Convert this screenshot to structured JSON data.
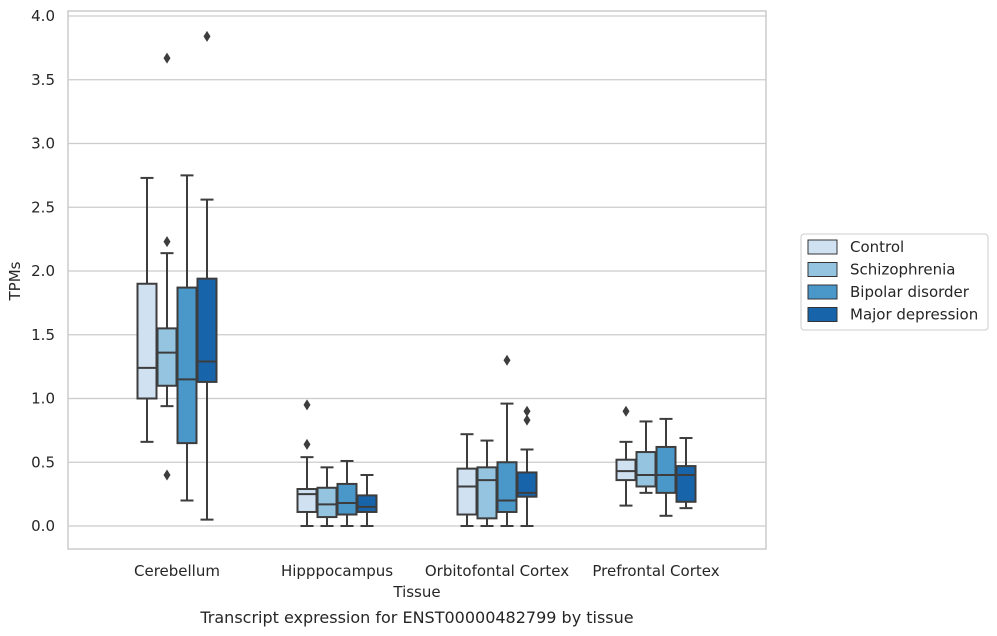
{
  "chart_data": {
    "type": "box",
    "xlabel": "Tissue",
    "ylabel": "TPMs",
    "caption": "Transcript expression for ENST00000482799 by tissue",
    "ylim": [
      -0.18,
      4.05
    ],
    "yticks": [
      "0.0",
      "0.5",
      "1.0",
      "1.5",
      "2.0",
      "2.5",
      "3.0",
      "3.5",
      "4.0"
    ],
    "grid": "horizontal",
    "legend_position": "right",
    "categories": [
      "Cerebellum",
      "Hipppocampus",
      "Orbitofontal Cortex",
      "Prefrontal Cortex"
    ],
    "series": [
      {
        "name": "Control",
        "color": "#d0e1f2",
        "boxes": [
          {
            "whisker_low": 0.66,
            "q1": 1.0,
            "median": 1.24,
            "q3": 1.9,
            "whisker_high": 2.73,
            "outliers": []
          },
          {
            "whisker_low": 0.0,
            "q1": 0.11,
            "median": 0.25,
            "q3": 0.29,
            "whisker_high": 0.54,
            "outliers": [
              0.64,
              0.95
            ]
          },
          {
            "whisker_low": 0.0,
            "q1": 0.09,
            "median": 0.31,
            "q3": 0.45,
            "whisker_high": 0.72,
            "outliers": []
          },
          {
            "whisker_low": 0.16,
            "q1": 0.36,
            "median": 0.43,
            "q3": 0.52,
            "whisker_high": 0.66,
            "outliers": [
              0.9
            ]
          }
        ]
      },
      {
        "name": "Schizophrenia",
        "color": "#94c4df",
        "boxes": [
          {
            "whisker_low": 0.94,
            "q1": 1.1,
            "median": 1.36,
            "q3": 1.55,
            "whisker_high": 2.14,
            "outliers": [
              0.4,
              2.23,
              3.67
            ]
          },
          {
            "whisker_low": 0.0,
            "q1": 0.07,
            "median": 0.17,
            "q3": 0.3,
            "whisker_high": 0.46,
            "outliers": []
          },
          {
            "whisker_low": 0.0,
            "q1": 0.06,
            "median": 0.36,
            "q3": 0.46,
            "whisker_high": 0.67,
            "outliers": []
          },
          {
            "whisker_low": 0.26,
            "q1": 0.31,
            "median": 0.4,
            "q3": 0.58,
            "whisker_high": 0.82,
            "outliers": []
          }
        ]
      },
      {
        "name": "Bipolar disorder",
        "color": "#4a98c9",
        "boxes": [
          {
            "whisker_low": 0.2,
            "q1": 0.65,
            "median": 1.15,
            "q3": 1.87,
            "whisker_high": 2.75,
            "outliers": []
          },
          {
            "whisker_low": 0.0,
            "q1": 0.09,
            "median": 0.18,
            "q3": 0.33,
            "whisker_high": 0.51,
            "outliers": []
          },
          {
            "whisker_low": 0.0,
            "q1": 0.11,
            "median": 0.2,
            "q3": 0.5,
            "whisker_high": 0.96,
            "outliers": [
              1.3
            ]
          },
          {
            "whisker_low": 0.08,
            "q1": 0.26,
            "median": 0.4,
            "q3": 0.62,
            "whisker_high": 0.84,
            "outliers": []
          }
        ]
      },
      {
        "name": "Major depression",
        "color": "#1764ab",
        "boxes": [
          {
            "whisker_low": 0.05,
            "q1": 1.13,
            "median": 1.29,
            "q3": 1.94,
            "whisker_high": 2.56,
            "outliers": [
              3.84
            ]
          },
          {
            "whisker_low": 0.0,
            "q1": 0.11,
            "median": 0.15,
            "q3": 0.24,
            "whisker_high": 0.4,
            "outliers": []
          },
          {
            "whisker_low": 0.0,
            "q1": 0.23,
            "median": 0.26,
            "q3": 0.42,
            "whisker_high": 0.6,
            "outliers": [
              0.83,
              0.9
            ]
          },
          {
            "whisker_low": 0.14,
            "q1": 0.19,
            "median": 0.4,
            "q3": 0.47,
            "whisker_high": 0.69,
            "outliers": []
          }
        ]
      }
    ]
  }
}
